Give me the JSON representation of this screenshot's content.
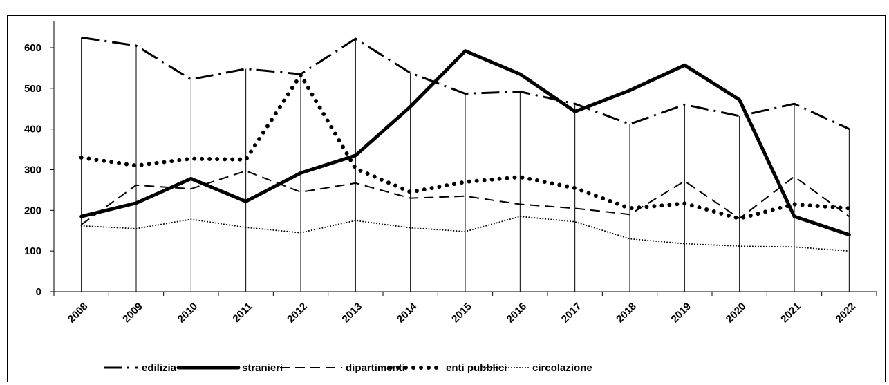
{
  "chart_data": {
    "type": "line",
    "categories": [
      "2008",
      "2009",
      "2010",
      "2011",
      "2012",
      "2013",
      "2014",
      "2015",
      "2016",
      "2017",
      "2018",
      "2019",
      "2020",
      "2021",
      "2022"
    ],
    "series": [
      {
        "name": "edilizia",
        "color": "#000000",
        "values": [
          625,
          605,
          522,
          548,
          535,
          622,
          538,
          487,
          492,
          462,
          412,
          460,
          432,
          462,
          400
        ]
      },
      {
        "name": "stranieri",
        "color": "#000000",
        "values": [
          185,
          218,
          278,
          222,
          292,
          335,
          455,
          592,
          535,
          443,
          495,
          557,
          472,
          185,
          140
        ]
      },
      {
        "name": "dipartimenti",
        "color": "#000000",
        "values": [
          165,
          262,
          253,
          297,
          245,
          267,
          230,
          235,
          215,
          205,
          190,
          272,
          180,
          283,
          185
        ]
      },
      {
        "name": "enti pubblici",
        "color": "#000000",
        "values": [
          330,
          310,
          327,
          325,
          533,
          303,
          245,
          270,
          282,
          255,
          205,
          217,
          180,
          215,
          205
        ]
      },
      {
        "name": "circolazione",
        "color": "#000000",
        "values": [
          162,
          155,
          178,
          158,
          145,
          175,
          157,
          148,
          185,
          172,
          130,
          118,
          112,
          110,
          100
        ]
      }
    ],
    "ylim": [
      0,
      600
    ],
    "yticks": [
      0,
      100,
      200,
      300,
      400,
      500,
      600
    ],
    "grid": false,
    "legend": "bottom"
  }
}
